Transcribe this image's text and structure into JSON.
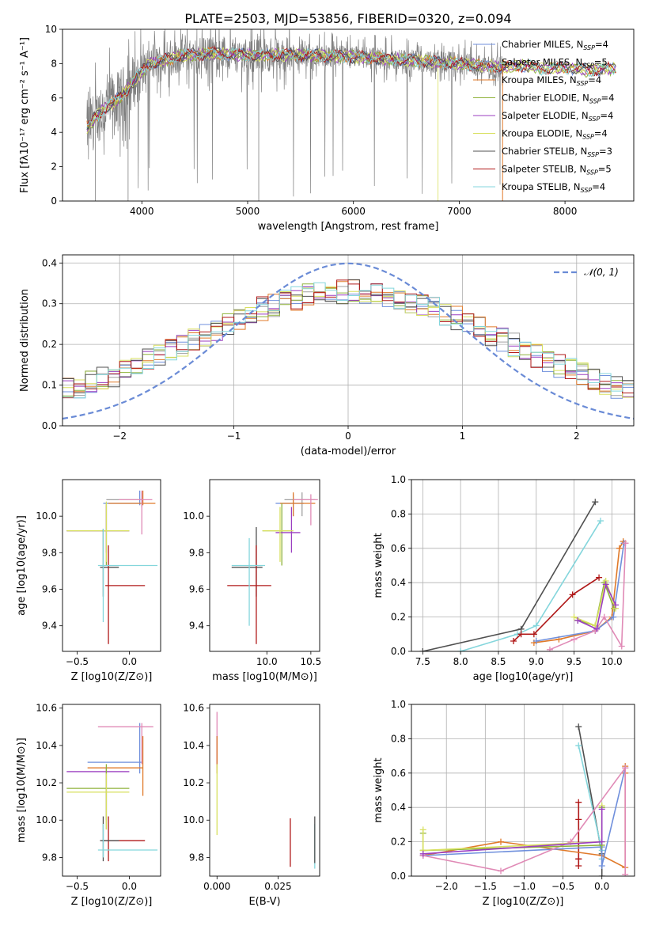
{
  "title": "PLATE=2503, MJD=53856, FIBERID=0320, z=0.094",
  "colors": {
    "chabrier_miles": "#6f8fdc",
    "salpeter_miles": "#a0a0a0",
    "kroupa_miles": "#e07a2a",
    "chabrier_elodie": "#8fb23a",
    "salpeter_elodie": "#9b3fc1",
    "kroupa_elodie": "#d8e060",
    "chabrier_stelib": "#505050",
    "salpeter_stelib": "#b01818",
    "kroupa_stelib": "#84d6dc",
    "gauss": "#6a8bd6",
    "pink": "#e08ab6"
  },
  "legend_spectrum": [
    {
      "key": "chabrier_miles",
      "text": "Chabrier MILES, N_SSP=4"
    },
    {
      "key": "salpeter_miles",
      "text": "Salpeter MILES, N_SSP=5"
    },
    {
      "key": "kroupa_miles",
      "text": "Kroupa MILES, N_SSP=4"
    },
    {
      "key": "chabrier_elodie",
      "text": "Chabrier ELODIE, N_SSP=4"
    },
    {
      "key": "salpeter_elodie",
      "text": "Salpeter ELODIE, N_SSP=4"
    },
    {
      "key": "kroupa_elodie",
      "text": "Kroupa ELODIE, N_SSP=4"
    },
    {
      "key": "chabrier_stelib",
      "text": "Chabrier STELIB, N_SSP=3"
    },
    {
      "key": "salpeter_stelib",
      "text": "Salpeter STELIB, N_SSP=5"
    },
    {
      "key": "kroupa_stelib",
      "text": "Kroupa STELIB, N_SSP=4"
    }
  ],
  "legend_gauss": "𝒩(0, 1)",
  "chart_data": [
    {
      "id": "spectrum",
      "type": "line",
      "xlabel": "wavelength [Angstrom, rest frame]",
      "ylabel": "Flux [fλ10⁻¹⁷ erg cm⁻² s⁻¹ A⁻¹]",
      "xlim": [
        3250,
        8650
      ],
      "ylim": [
        0,
        10
      ],
      "xticks": [
        4000,
        5000,
        6000,
        7000,
        8000
      ],
      "yticks": [
        0,
        2,
        4,
        6,
        8,
        10
      ],
      "continuum": {
        "x": [
          3500,
          3550,
          3650,
          3750,
          3850,
          3950,
          4050,
          4200,
          4400,
          4700,
          5000,
          5500,
          6000,
          6500,
          7000,
          7400
        ],
        "y": [
          4.3,
          4.8,
          5.4,
          5.8,
          6.4,
          7.2,
          7.9,
          8.2,
          8.5,
          8.6,
          8.5,
          8.5,
          8.4,
          8.2,
          8.0,
          7.8
        ]
      },
      "model_tail": {
        "x": [
          7450,
          7600,
          7800,
          8000,
          8200,
          8400
        ],
        "y": [
          7.8,
          7.9,
          7.7,
          7.8,
          7.6,
          7.7
        ]
      },
      "grid": false
    },
    {
      "id": "residuals",
      "type": "histogram",
      "xlabel": "(data-model)/error",
      "ylabel": "Normed distribution",
      "xlim": [
        -2.5,
        2.5
      ],
      "ylim": [
        0,
        0.42
      ],
      "xticks": [
        -2,
        -1,
        0,
        1,
        2
      ],
      "yticks": [
        0.0,
        0.1,
        0.2,
        0.3,
        0.4
      ],
      "bin_width": 0.1,
      "gaussian": {
        "mu": 0,
        "sigma": 1
      },
      "grid": true
    },
    {
      "id": "age_vs_Z",
      "type": "errorbar",
      "xlabel": "Z [log10(Z/Z⊙)]",
      "ylabel": "age [log10(age/yr)]",
      "xlim": [
        -0.64,
        0.3
      ],
      "ylim": [
        9.26,
        10.2
      ],
      "xticks": [
        -0.5,
        0.0
      ],
      "yticks": [
        9.4,
        9.6,
        9.8,
        10.0
      ],
      "points": [
        {
          "c": "chabrier_miles",
          "x": 0.1,
          "y": 10.07,
          "xe": [
            -0.25,
            0.1
          ],
          "ye": [
            10.06,
            10.14
          ]
        },
        {
          "c": "salpeter_miles",
          "x": 0.12,
          "y": 10.09,
          "xe": [
            -0.22,
            0.12
          ],
          "ye": [
            10.05,
            10.13
          ]
        },
        {
          "c": "kroupa_miles",
          "x": 0.13,
          "y": 10.07,
          "xe": [
            -0.2,
            0.25
          ],
          "ye": [
            10.06,
            10.14
          ]
        },
        {
          "c": "pink",
          "x": 0.12,
          "y": 10.09,
          "xe": [
            -0.1,
            0.22
          ],
          "ye": [
            9.9,
            10.14
          ]
        },
        {
          "c": "chabrier_elodie",
          "x": -0.22,
          "y": 9.92,
          "xe": [
            -0.6,
            0.0
          ],
          "ye": [
            9.73,
            10.07
          ]
        },
        {
          "c": "salpeter_elodie",
          "x": -0.22,
          "y": 9.92,
          "xe": [
            -0.6,
            0.0
          ],
          "ye": [
            9.8,
            10.06
          ]
        },
        {
          "c": "kroupa_elodie",
          "x": -0.22,
          "y": 9.92,
          "xe": [
            -0.6,
            0.0
          ],
          "ye": [
            9.75,
            10.08
          ]
        },
        {
          "c": "chabrier_stelib",
          "x": -0.25,
          "y": 9.72,
          "xe": [
            -0.28,
            -0.1
          ],
          "ye": [
            9.56,
            9.93
          ]
        },
        {
          "c": "salpeter_stelib",
          "x": -0.2,
          "y": 9.62,
          "xe": [
            -0.23,
            0.15
          ],
          "ye": [
            9.3,
            9.84
          ]
        },
        {
          "c": "kroupa_stelib",
          "x": -0.25,
          "y": 9.73,
          "xe": [
            -0.3,
            0.27
          ],
          "ye": [
            9.42,
            9.93
          ]
        }
      ]
    },
    {
      "id": "age_vs_mass",
      "type": "errorbar",
      "xlabel": "mass [log10(M/M⊙)]",
      "ylabel": "",
      "xlim": [
        9.35,
        10.6
      ],
      "ylim": [
        9.26,
        10.2
      ],
      "xticks": [
        10.0,
        10.5
      ],
      "yticks": [
        9.4,
        9.6,
        9.8,
        10.0
      ],
      "points": [
        {
          "c": "chabrier_miles",
          "x": 10.3,
          "y": 10.07,
          "xe": [
            10.1,
            10.42
          ],
          "ye": [
            10.0,
            10.12
          ]
        },
        {
          "c": "salpeter_miles",
          "x": 10.4,
          "y": 10.09,
          "xe": [
            10.2,
            10.55
          ],
          "ye": [
            10.0,
            10.13
          ]
        },
        {
          "c": "kroupa_miles",
          "x": 10.3,
          "y": 10.07,
          "xe": [
            10.15,
            10.55
          ],
          "ye": [
            10.0,
            10.13
          ]
        },
        {
          "c": "pink",
          "x": 10.5,
          "y": 10.09,
          "xe": [
            10.3,
            10.58
          ],
          "ye": [
            9.95,
            10.12
          ]
        },
        {
          "c": "chabrier_elodie",
          "x": 10.17,
          "y": 9.92,
          "xe": [
            9.95,
            10.3
          ],
          "ye": [
            9.73,
            10.07
          ]
        },
        {
          "c": "salpeter_elodie",
          "x": 10.28,
          "y": 9.91,
          "xe": [
            10.1,
            10.38
          ],
          "ye": [
            9.8,
            10.05
          ]
        },
        {
          "c": "kroupa_elodie",
          "x": 10.15,
          "y": 9.92,
          "xe": [
            9.95,
            10.3
          ],
          "ye": [
            9.75,
            10.05
          ]
        },
        {
          "c": "chabrier_stelib",
          "x": 9.88,
          "y": 9.72,
          "xe": [
            9.6,
            9.95
          ],
          "ye": [
            9.56,
            9.94
          ]
        },
        {
          "c": "salpeter_stelib",
          "x": 9.88,
          "y": 9.62,
          "xe": [
            9.55,
            10.05
          ],
          "ye": [
            9.3,
            9.84
          ]
        },
        {
          "c": "kroupa_stelib",
          "x": 9.8,
          "y": 9.73,
          "xe": [
            9.6,
            9.98
          ],
          "ye": [
            9.4,
            9.88
          ]
        }
      ]
    },
    {
      "id": "weight_vs_age",
      "type": "line",
      "xlabel": "age [log10(age/yr)]",
      "ylabel": "mass weight",
      "xlim": [
        7.35,
        10.3
      ],
      "ylim": [
        0,
        1.0
      ],
      "xticks": [
        7.5,
        8.0,
        8.5,
        9.0,
        9.5,
        10.0
      ],
      "yticks": [
        0.0,
        0.2,
        0.4,
        0.6,
        0.8,
        1.0
      ],
      "grid": true,
      "series": [
        {
          "c": "chabrier_stelib",
          "x": [
            7.5,
            8.8,
            9.78
          ],
          "y": [
            0.0,
            0.13,
            0.87
          ]
        },
        {
          "c": "kroupa_stelib",
          "x": [
            8.0,
            8.75,
            9.0,
            9.85
          ],
          "y": [
            0.0,
            0.1,
            0.15,
            0.76
          ]
        },
        {
          "c": "salpeter_stelib",
          "x": [
            8.7,
            8.8,
            8.97,
            9.48,
            9.83
          ],
          "y": [
            0.06,
            0.1,
            0.1,
            0.33,
            0.43
          ]
        },
        {
          "c": "kroupa_miles",
          "x": [
            8.97,
            9.3,
            9.78,
            10.0,
            10.1,
            10.15
          ],
          "y": [
            0.05,
            0.07,
            0.12,
            0.2,
            0.6,
            0.64
          ]
        },
        {
          "c": "chabrier_miles",
          "x": [
            9.0,
            9.78,
            10.02,
            10.16
          ],
          "y": [
            0.06,
            0.12,
            0.2,
            0.63
          ]
        },
        {
          "c": "pink",
          "x": [
            9.18,
            9.5,
            9.78,
            9.9,
            10.13,
            10.18
          ],
          "y": [
            0.01,
            0.07,
            0.12,
            0.2,
            0.03,
            0.63
          ]
        },
        {
          "c": "chabrier_elodie",
          "x": [
            9.55,
            9.78,
            9.9,
            10.03
          ],
          "y": [
            0.18,
            0.15,
            0.4,
            0.25
          ]
        },
        {
          "c": "kroupa_elodie",
          "x": [
            9.5,
            9.78,
            9.92,
            10.05
          ],
          "y": [
            0.2,
            0.15,
            0.41,
            0.25
          ]
        },
        {
          "c": "salpeter_elodie",
          "x": [
            9.55,
            9.8,
            9.92,
            10.05
          ],
          "y": [
            0.18,
            0.13,
            0.39,
            0.27
          ]
        }
      ]
    },
    {
      "id": "mass_vs_Z",
      "type": "errorbar",
      "xlabel": "Z [log10(Z/Z⊙)]",
      "ylabel": "mass [log10(M/M⊙)]",
      "xlim": [
        -0.64,
        0.3
      ],
      "ylim": [
        9.7,
        10.62
      ],
      "xticks": [
        -0.5,
        0.0
      ],
      "yticks": [
        9.8,
        10.0,
        10.2,
        10.4,
        10.6
      ],
      "points": [
        {
          "c": "chabrier_miles",
          "x": 0.1,
          "y": 10.31,
          "xe": [
            -0.4,
            0.12
          ],
          "ye": [
            10.25,
            10.52
          ]
        },
        {
          "c": "pink",
          "x": 0.12,
          "y": 10.5,
          "xe": [
            -0.3,
            0.23
          ],
          "ye": [
            10.3,
            10.52
          ]
        },
        {
          "c": "kroupa_miles",
          "x": 0.13,
          "y": 10.28,
          "xe": [
            -0.4,
            0.13
          ],
          "ye": [
            10.13,
            10.45
          ]
        },
        {
          "c": "salpeter_elodie",
          "x": -0.22,
          "y": 10.26,
          "xe": [
            -0.6,
            0.0
          ],
          "ye": [
            10.0,
            10.28
          ]
        },
        {
          "c": "chabrier_elodie",
          "x": -0.22,
          "y": 10.17,
          "xe": [
            -0.6,
            0.0
          ],
          "ye": [
            9.95,
            10.3
          ]
        },
        {
          "c": "kroupa_elodie",
          "x": -0.22,
          "y": 10.15,
          "xe": [
            -0.6,
            0.0
          ],
          "ye": [
            9.95,
            10.25
          ]
        },
        {
          "c": "salpeter_stelib",
          "x": -0.2,
          "y": 9.89,
          "xe": [
            -0.25,
            0.15
          ],
          "ye": [
            9.78,
            10.02
          ]
        },
        {
          "c": "chabrier_stelib",
          "x": -0.25,
          "y": 9.89,
          "xe": [
            -0.28,
            -0.1
          ],
          "ye": [
            9.78,
            10.02
          ]
        },
        {
          "c": "kroupa_stelib",
          "x": -0.25,
          "y": 9.84,
          "xe": [
            -0.3,
            0.27
          ],
          "ye": [
            9.8,
            9.98
          ]
        }
      ]
    },
    {
      "id": "mass_vs_EBV",
      "type": "errorbar",
      "xlabel": "E(B-V)",
      "ylabel": "",
      "xlim": [
        -0.003,
        0.042
      ],
      "ylim": [
        9.7,
        10.62
      ],
      "xticks": [
        0.0,
        0.025
      ],
      "yticks": [
        9.8,
        10.0,
        10.2,
        10.4,
        10.6
      ],
      "points": [
        {
          "c": "pink",
          "x": 0.0,
          "y": 10.4,
          "ye": [
            10.25,
            10.58
          ]
        },
        {
          "c": "salpeter_elodie",
          "x": 0.0,
          "y": 10.3,
          "ye": [
            10.28,
            10.45
          ]
        },
        {
          "c": "kroupa_miles",
          "x": 0.0,
          "y": 10.35,
          "ye": [
            10.25,
            10.45
          ]
        },
        {
          "c": "kroupa_elodie",
          "x": 0.0,
          "y": 10.1,
          "ye": [
            9.92,
            10.3
          ]
        },
        {
          "c": "salpeter_stelib",
          "x": 0.03,
          "y": 9.89,
          "ye": [
            9.75,
            10.01
          ]
        },
        {
          "c": "kroupa_stelib",
          "x": 0.04,
          "y": 9.84,
          "ye": [
            9.74,
            9.98
          ]
        },
        {
          "c": "chabrier_stelib",
          "x": 0.04,
          "y": 9.89,
          "ye": [
            9.77,
            10.02
          ]
        }
      ]
    },
    {
      "id": "weight_vs_Z",
      "type": "line",
      "xlabel": "Z [log10(Z/Z⊙)]",
      "ylabel": "mass weight",
      "xlim": [
        -2.45,
        0.42
      ],
      "ylim": [
        0,
        1.0
      ],
      "xticks": [
        -2.0,
        -1.5,
        -1.0,
        -0.5,
        0.0
      ],
      "yticks": [
        0.0,
        0.2,
        0.4,
        0.6,
        0.8,
        1.0
      ],
      "grid": true,
      "series": [
        {
          "c": "chabrier_stelib",
          "x": [
            -0.3,
            0.0,
            0.0
          ],
          "y": [
            0.87,
            0.13,
            0.0
          ]
        },
        {
          "c": "kroupa_stelib",
          "x": [
            -0.3,
            0.0,
            0.0
          ],
          "y": [
            0.76,
            0.15,
            0.1
          ]
        },
        {
          "c": "salpeter_stelib",
          "x": [
            -0.3,
            -0.3,
            -0.3,
            -0.3,
            -0.3
          ],
          "y": [
            0.43,
            0.33,
            0.1,
            0.1,
            0.06
          ]
        },
        {
          "c": "kroupa_miles",
          "x": [
            -2.3,
            -1.3,
            0.0,
            0.3,
            0.3,
            0.3
          ],
          "y": [
            0.12,
            0.2,
            0.12,
            0.05,
            0.6,
            0.64
          ]
        },
        {
          "c": "chabrier_miles",
          "x": [
            -2.3,
            0.0,
            0.0,
            0.3
          ],
          "y": [
            0.12,
            0.17,
            0.06,
            0.63
          ]
        },
        {
          "c": "pink",
          "x": [
            -2.3,
            -1.3,
            -0.4,
            0.3,
            0.3
          ],
          "y": [
            0.12,
            0.03,
            0.2,
            0.63,
            0.01
          ]
        },
        {
          "c": "chabrier_elodie",
          "x": [
            -2.3,
            -2.3,
            0.0,
            0.0
          ],
          "y": [
            0.25,
            0.15,
            0.18,
            0.4
          ]
        },
        {
          "c": "kroupa_elodie",
          "x": [
            -2.3,
            -2.3,
            0.0,
            0.0
          ],
          "y": [
            0.27,
            0.15,
            0.2,
            0.41
          ]
        },
        {
          "c": "salpeter_elodie",
          "x": [
            -2.3,
            0.0,
            0.0
          ],
          "y": [
            0.13,
            0.2,
            0.39
          ]
        }
      ]
    }
  ]
}
